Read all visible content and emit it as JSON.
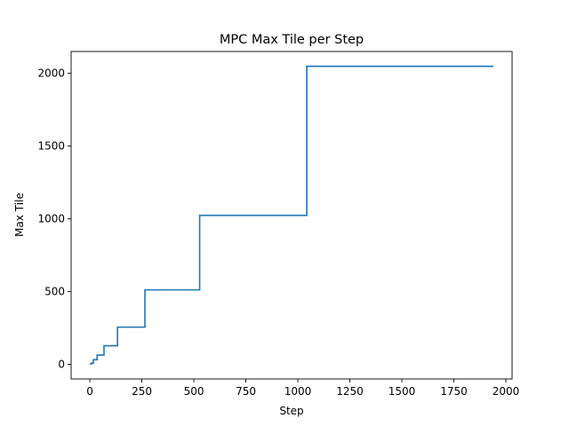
{
  "chart_data": {
    "type": "line",
    "title": "MPC Max Tile per Step",
    "xlabel": "Step",
    "ylabel": "Max Tile",
    "xlim": [
      -90,
      2030
    ],
    "ylim": [
      -100,
      2150
    ],
    "xticks": [
      0,
      250,
      500,
      750,
      1000,
      1250,
      1500,
      1750,
      2000
    ],
    "yticks": [
      0,
      500,
      1000,
      1500,
      2000
    ],
    "grid": false,
    "series": [
      {
        "color": "#1f77b4",
        "step": "post",
        "x": [
          0,
          8,
          17,
          35,
          68,
          133,
          265,
          528,
          1043,
          1940
        ],
        "y": [
          4,
          8,
          32,
          64,
          128,
          256,
          512,
          1024,
          2048,
          2048
        ]
      }
    ]
  }
}
